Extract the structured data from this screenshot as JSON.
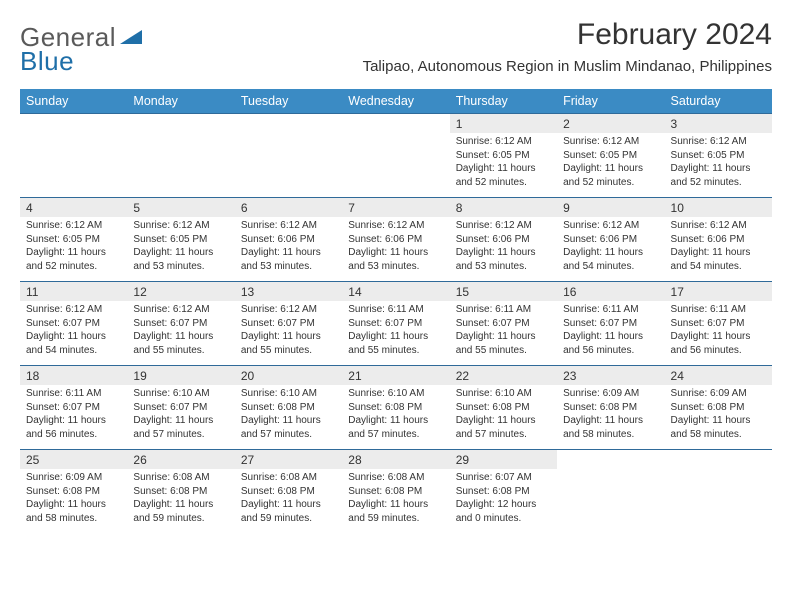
{
  "brand": {
    "text1": "General",
    "text2": "Blue"
  },
  "title": "February 2024",
  "subtitle": "Talipao, Autonomous Region in Muslim Mindanao, Philippines",
  "colors": {
    "header_bg": "#3b8bc4",
    "header_text": "#ffffff",
    "separator": "#2f6a99",
    "daynum_bg": "#ececec",
    "page_bg": "#ffffff",
    "text": "#333333",
    "logo_gray": "#5a5a5a",
    "logo_blue": "#1f6fa8"
  },
  "typography": {
    "title_fontsize": 30,
    "subtitle_fontsize": 15,
    "dayhead_fontsize": 12.5,
    "daynum_fontsize": 12,
    "detail_fontsize": 10
  },
  "calendar": {
    "type": "table",
    "columns": [
      "Sunday",
      "Monday",
      "Tuesday",
      "Wednesday",
      "Thursday",
      "Friday",
      "Saturday"
    ],
    "weeks": [
      [
        null,
        null,
        null,
        null,
        {
          "n": "1",
          "sr": "6:12 AM",
          "ss": "6:05 PM",
          "dl": "11 hours and 52 minutes."
        },
        {
          "n": "2",
          "sr": "6:12 AM",
          "ss": "6:05 PM",
          "dl": "11 hours and 52 minutes."
        },
        {
          "n": "3",
          "sr": "6:12 AM",
          "ss": "6:05 PM",
          "dl": "11 hours and 52 minutes."
        }
      ],
      [
        {
          "n": "4",
          "sr": "6:12 AM",
          "ss": "6:05 PM",
          "dl": "11 hours and 52 minutes."
        },
        {
          "n": "5",
          "sr": "6:12 AM",
          "ss": "6:05 PM",
          "dl": "11 hours and 53 minutes."
        },
        {
          "n": "6",
          "sr": "6:12 AM",
          "ss": "6:06 PM",
          "dl": "11 hours and 53 minutes."
        },
        {
          "n": "7",
          "sr": "6:12 AM",
          "ss": "6:06 PM",
          "dl": "11 hours and 53 minutes."
        },
        {
          "n": "8",
          "sr": "6:12 AM",
          "ss": "6:06 PM",
          "dl": "11 hours and 53 minutes."
        },
        {
          "n": "9",
          "sr": "6:12 AM",
          "ss": "6:06 PM",
          "dl": "11 hours and 54 minutes."
        },
        {
          "n": "10",
          "sr": "6:12 AM",
          "ss": "6:06 PM",
          "dl": "11 hours and 54 minutes."
        }
      ],
      [
        {
          "n": "11",
          "sr": "6:12 AM",
          "ss": "6:07 PM",
          "dl": "11 hours and 54 minutes."
        },
        {
          "n": "12",
          "sr": "6:12 AM",
          "ss": "6:07 PM",
          "dl": "11 hours and 55 minutes."
        },
        {
          "n": "13",
          "sr": "6:12 AM",
          "ss": "6:07 PM",
          "dl": "11 hours and 55 minutes."
        },
        {
          "n": "14",
          "sr": "6:11 AM",
          "ss": "6:07 PM",
          "dl": "11 hours and 55 minutes."
        },
        {
          "n": "15",
          "sr": "6:11 AM",
          "ss": "6:07 PM",
          "dl": "11 hours and 55 minutes."
        },
        {
          "n": "16",
          "sr": "6:11 AM",
          "ss": "6:07 PM",
          "dl": "11 hours and 56 minutes."
        },
        {
          "n": "17",
          "sr": "6:11 AM",
          "ss": "6:07 PM",
          "dl": "11 hours and 56 minutes."
        }
      ],
      [
        {
          "n": "18",
          "sr": "6:11 AM",
          "ss": "6:07 PM",
          "dl": "11 hours and 56 minutes."
        },
        {
          "n": "19",
          "sr": "6:10 AM",
          "ss": "6:07 PM",
          "dl": "11 hours and 57 minutes."
        },
        {
          "n": "20",
          "sr": "6:10 AM",
          "ss": "6:08 PM",
          "dl": "11 hours and 57 minutes."
        },
        {
          "n": "21",
          "sr": "6:10 AM",
          "ss": "6:08 PM",
          "dl": "11 hours and 57 minutes."
        },
        {
          "n": "22",
          "sr": "6:10 AM",
          "ss": "6:08 PM",
          "dl": "11 hours and 57 minutes."
        },
        {
          "n": "23",
          "sr": "6:09 AM",
          "ss": "6:08 PM",
          "dl": "11 hours and 58 minutes."
        },
        {
          "n": "24",
          "sr": "6:09 AM",
          "ss": "6:08 PM",
          "dl": "11 hours and 58 minutes."
        }
      ],
      [
        {
          "n": "25",
          "sr": "6:09 AM",
          "ss": "6:08 PM",
          "dl": "11 hours and 58 minutes."
        },
        {
          "n": "26",
          "sr": "6:08 AM",
          "ss": "6:08 PM",
          "dl": "11 hours and 59 minutes."
        },
        {
          "n": "27",
          "sr": "6:08 AM",
          "ss": "6:08 PM",
          "dl": "11 hours and 59 minutes."
        },
        {
          "n": "28",
          "sr": "6:08 AM",
          "ss": "6:08 PM",
          "dl": "11 hours and 59 minutes."
        },
        {
          "n": "29",
          "sr": "6:07 AM",
          "ss": "6:08 PM",
          "dl": "12 hours and 0 minutes."
        },
        null,
        null
      ]
    ],
    "labels": {
      "sunrise": "Sunrise:",
      "sunset": "Sunset:",
      "daylight": "Daylight:"
    }
  }
}
